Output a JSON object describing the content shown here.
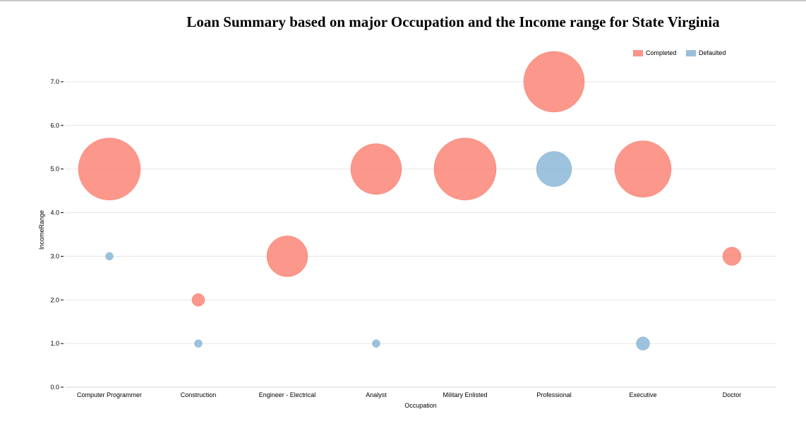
{
  "chart_data": {
    "type": "scatter",
    "title": "Loan Summary based on major Occupation and the Income range for State Virginia",
    "xlabel": "Occupation",
    "ylabel": "IncomeRange",
    "categories": [
      "Computer Programmer",
      "Construction",
      "Engineer - Electrical",
      "Analyst",
      "Military Enlisted",
      "Professional",
      "Executive",
      "Doctor"
    ],
    "ylim": [
      0,
      7.5
    ],
    "yticks": [
      "0.0",
      "1.0",
      "2.0",
      "3.0",
      "4.0",
      "5.0",
      "6.0",
      "7.0"
    ],
    "grid": true,
    "legend_position": "top-right",
    "series": [
      {
        "name": "Completed",
        "color": "#fa8072",
        "points": [
          {
            "x": "Computer Programmer",
            "y": 5,
            "size": 44
          },
          {
            "x": "Construction",
            "y": 2,
            "size": 9
          },
          {
            "x": "Engineer - Electrical",
            "y": 3,
            "size": 29
          },
          {
            "x": "Analyst",
            "y": 5,
            "size": 36
          },
          {
            "x": "Military Enlisted",
            "y": 5,
            "size": 44
          },
          {
            "x": "Professional",
            "y": 7,
            "size": 43
          },
          {
            "x": "Executive",
            "y": 5,
            "size": 40
          },
          {
            "x": "Doctor",
            "y": 3,
            "size": 13
          }
        ]
      },
      {
        "name": "Defaulted",
        "color": "#87b5d5",
        "points": [
          {
            "x": "Computer Programmer",
            "y": 3,
            "size": 5.5
          },
          {
            "x": "Construction",
            "y": 1,
            "size": 5.5
          },
          {
            "x": "Analyst",
            "y": 1,
            "size": 5.5
          },
          {
            "x": "Professional",
            "y": 5,
            "size": 25
          },
          {
            "x": "Executive",
            "y": 1,
            "size": 9.5
          }
        ]
      }
    ]
  }
}
